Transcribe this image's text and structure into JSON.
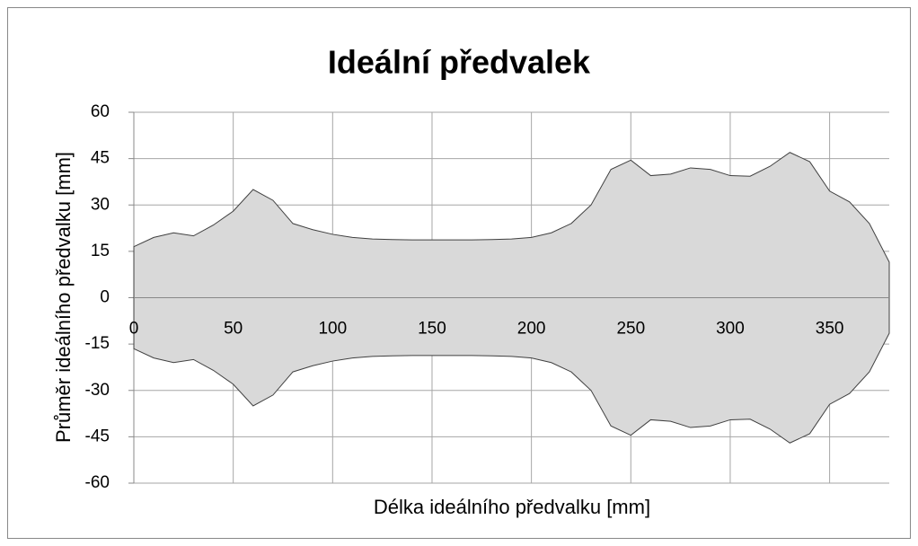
{
  "chart_data": {
    "type": "area",
    "title": "Ideální předvalek",
    "x_label": "Délka ideálního předvalku [mm]",
    "y_label": "Průměr ideálního předvalku [mm]",
    "x": [
      0,
      10,
      20,
      30,
      40,
      50,
      60,
      70,
      80,
      90,
      100,
      110,
      120,
      130,
      140,
      150,
      160,
      170,
      180,
      190,
      200,
      210,
      220,
      230,
      240,
      250,
      260,
      270,
      280,
      290,
      300,
      310,
      320,
      330,
      340,
      350,
      360,
      370,
      380
    ],
    "series": [
      {
        "color": "#d9d9d9",
        "values": [
          16.5,
          19.5,
          21,
          20,
          23.5,
          28,
          35,
          31.5,
          24,
          22,
          20.5,
          19.5,
          19,
          18.8,
          18.7,
          18.7,
          18.7,
          18.7,
          18.8,
          19,
          19.5,
          21,
          24,
          30,
          41.5,
          44.5,
          39.5,
          40,
          42,
          41.5,
          39.5,
          39.3,
          42.5,
          47,
          44,
          34.5,
          31,
          24,
          11.5
        ]
      },
      {
        "color": "#d9d9d9",
        "values": [
          -16.5,
          -19.5,
          -21,
          -20,
          -23.5,
          -28,
          -35,
          -31.5,
          -24,
          -22,
          -20.5,
          -19.5,
          -19,
          -18.8,
          -18.7,
          -18.7,
          -18.7,
          -18.7,
          -18.8,
          -19,
          -19.5,
          -21,
          -24,
          -30,
          -41.5,
          -44.5,
          -39.5,
          -40,
          -42,
          -41.5,
          -39.5,
          -39.3,
          -42.5,
          -47,
          -44,
          -34.5,
          -31,
          -24,
          -11.5
        ]
      }
    ],
    "xlim": [
      0,
      380
    ],
    "xticks": [
      0,
      50,
      100,
      150,
      200,
      250,
      300,
      350
    ],
    "ylim": [
      -60,
      60
    ],
    "yticks": [
      60,
      45,
      30,
      15,
      0,
      -15,
      -30,
      -45,
      -60
    ],
    "grid": true
  }
}
